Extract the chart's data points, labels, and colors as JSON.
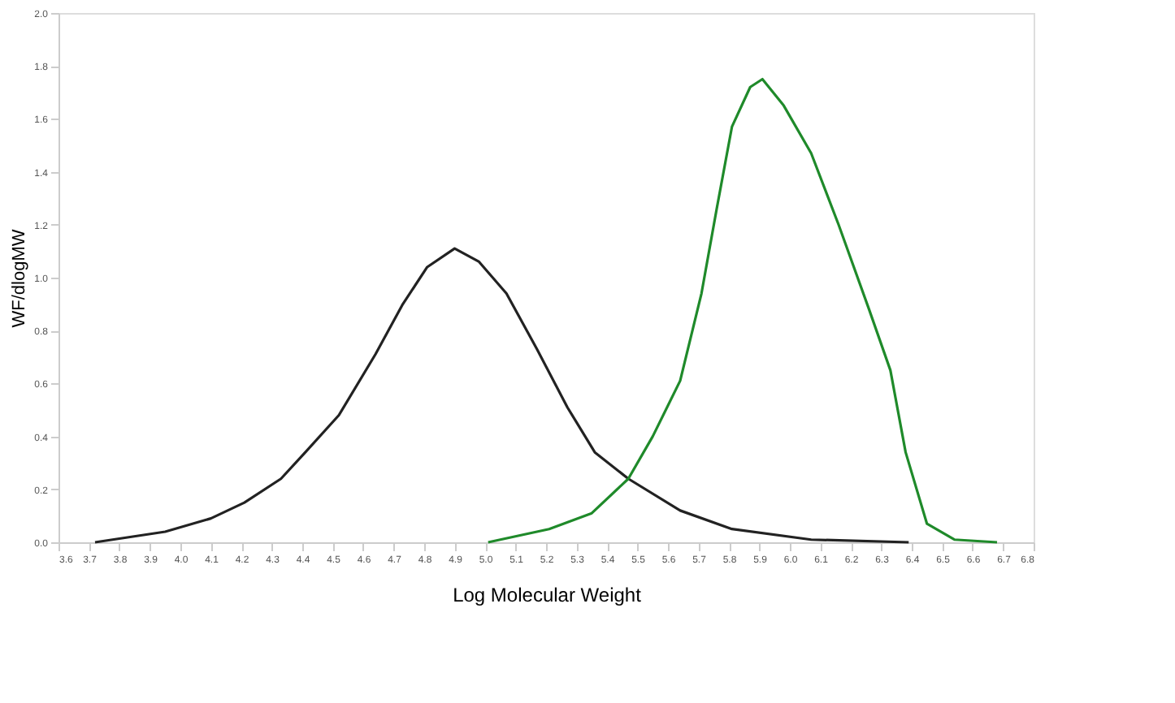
{
  "chart_data": {
    "type": "line",
    "xlabel": "Log Molecular Weight",
    "ylabel": "WF/dlogMW",
    "xlim": [
      3.6,
      6.8
    ],
    "ylim": [
      0,
      2
    ],
    "xticks": [
      3.6,
      3.7,
      3.8,
      3.9,
      {
        "value": 4,
        "label": "4.0"
      },
      4.1,
      4.2,
      4.3,
      4.4,
      4.5,
      4.6,
      4.7,
      4.8,
      4.9,
      {
        "value": 5,
        "label": "5.0"
      },
      5.1,
      5.2,
      5.3,
      5.4,
      5.5,
      5.6,
      5.7,
      5.8,
      5.9,
      {
        "value": 6,
        "label": "6.0"
      },
      6.1,
      6.2,
      6.3,
      6.4,
      6.5,
      6.6,
      6.7,
      6.8
    ],
    "yticks": [
      {
        "value": 0,
        "label": "0.0"
      },
      0.2,
      0.4,
      0.6,
      0.8,
      {
        "value": 1,
        "label": "1.0"
      },
      1.2,
      1.4,
      1.6,
      1.8,
      {
        "value": 2,
        "label": "2.0"
      }
    ],
    "grid": false,
    "legend": false,
    "marker": "none",
    "line_style": "solid",
    "series": [
      {
        "color": "#222222",
        "x": [
          3.72,
          3.95,
          4.1,
          4.21,
          4.33,
          4.41,
          4.52,
          4.64,
          4.73,
          4.81,
          4.9,
          4.98,
          5.07,
          5.17,
          5.27,
          5.36,
          5.47,
          5.64,
          5.81,
          6.07,
          6.39
        ],
        "values": [
          0.0,
          0.04,
          0.09,
          0.15,
          0.24,
          0.34,
          0.48,
          0.71,
          0.9,
          1.04,
          1.11,
          1.06,
          0.94,
          0.73,
          0.51,
          0.34,
          0.24,
          0.12,
          0.05,
          0.01,
          0.0
        ]
      },
      {
        "color": "#1f8a2a",
        "x": [
          5.01,
          5.21,
          5.35,
          5.47,
          5.55,
          5.64,
          5.71,
          5.76,
          5.81,
          5.87,
          5.91,
          5.98,
          6.07,
          6.16,
          6.26,
          6.33,
          6.38,
          6.45,
          6.54,
          6.68
        ],
        "values": [
          0.0,
          0.05,
          0.11,
          0.24,
          0.4,
          0.61,
          0.94,
          1.26,
          1.57,
          1.72,
          1.75,
          1.65,
          1.47,
          1.2,
          0.88,
          0.65,
          0.34,
          0.07,
          0.01,
          0.0
        ]
      }
    ]
  }
}
